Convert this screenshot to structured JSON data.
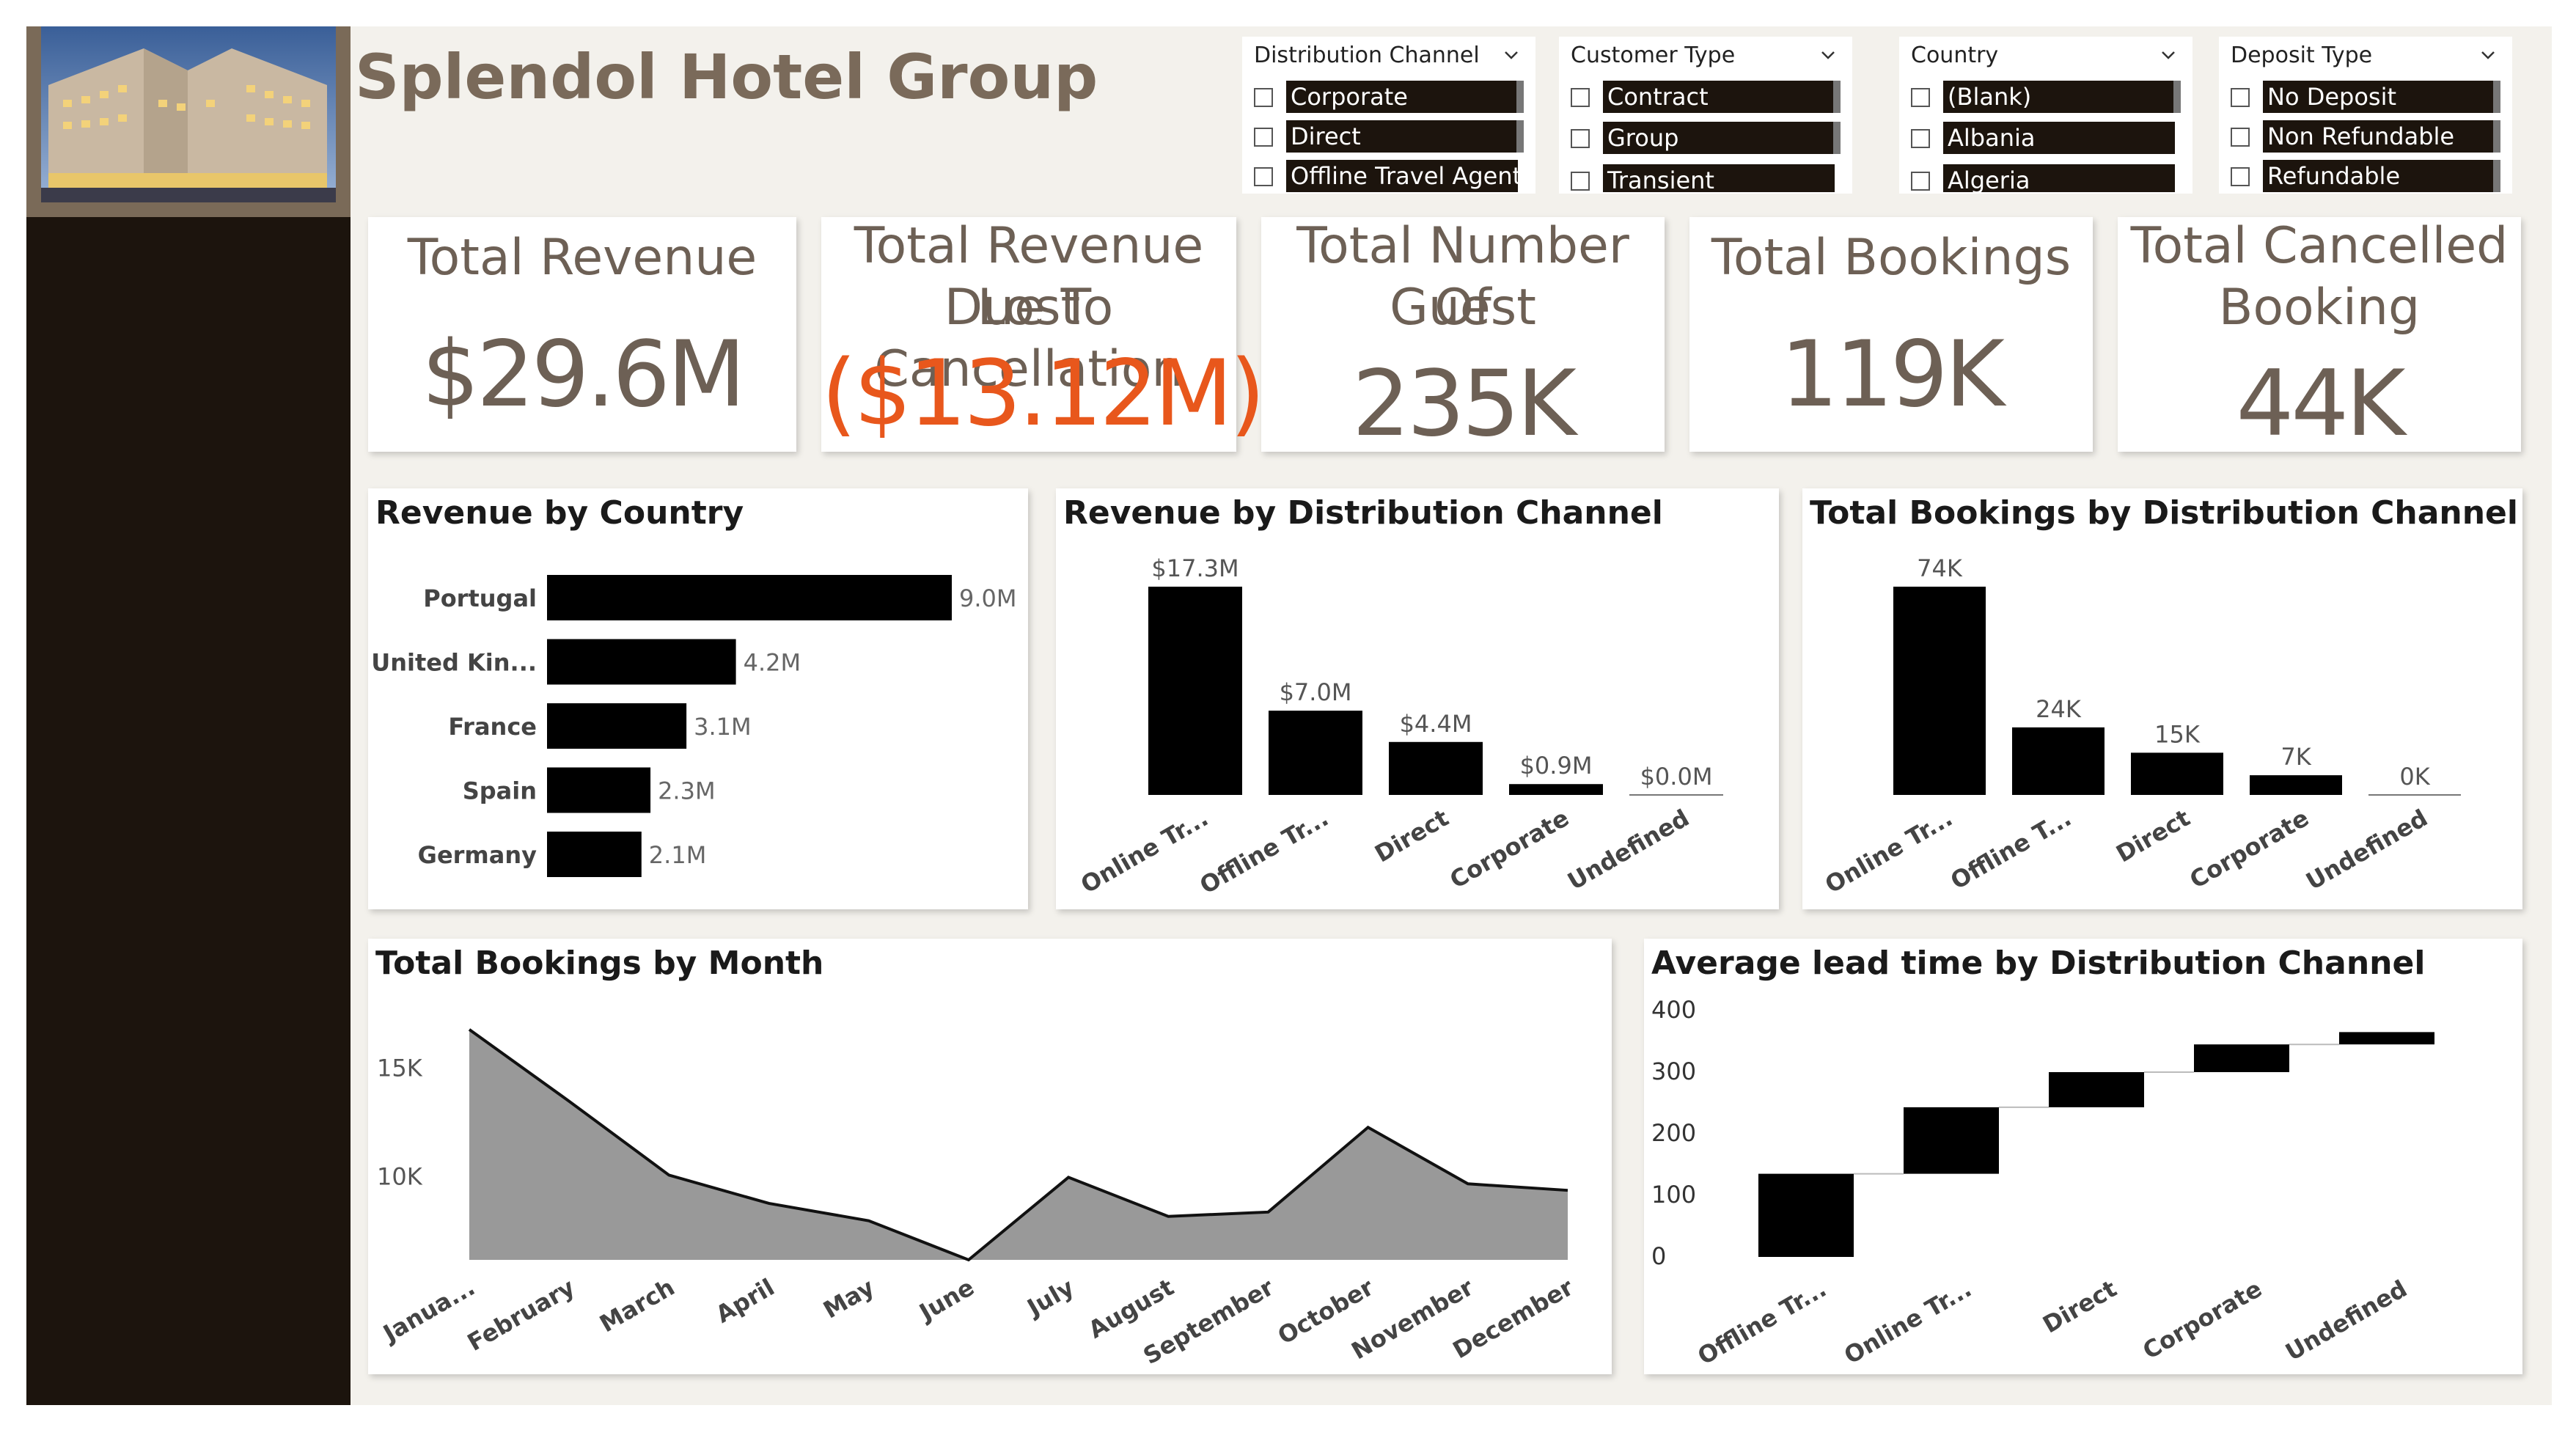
{
  "app": {
    "title": "Splendol Hotel Group"
  },
  "colors": {
    "sidebar": "#1c140d",
    "canvas": "#f3f1ec",
    "kpi_text": "#6d6055",
    "lost_revenue": "#e8571c",
    "bar": "#000000",
    "area_fill": "#999999"
  },
  "slicers": [
    {
      "title": "Distribution Channel",
      "items": [
        "Corporate",
        "Direct",
        "Offline Travel Agent"
      ]
    },
    {
      "title": "Customer Type",
      "items": [
        "Contract",
        "Group",
        "Transient"
      ]
    },
    {
      "title": "Country",
      "items": [
        "(Blank)",
        "Albania",
        "Algeria"
      ]
    },
    {
      "title": "Deposit Type",
      "items": [
        "No Deposit",
        "Non Refundable",
        "Refundable"
      ]
    }
  ],
  "kpis": [
    {
      "label_lines": [
        "Total Revenue"
      ],
      "value": "$29.6M"
    },
    {
      "label_lines": [
        "Total Revenue Lost",
        "Due To Cancellation"
      ],
      "value": "($13.12M)"
    },
    {
      "label_lines": [
        "Total Number Of",
        "Guest"
      ],
      "value": "235K"
    },
    {
      "label_lines": [
        "Total Bookings"
      ],
      "value": "119K"
    },
    {
      "label_lines": [
        "Total Cancelled",
        "Booking"
      ],
      "value": "44K"
    }
  ],
  "chart_data": [
    {
      "type": "bar",
      "orientation": "horizontal",
      "title": "Revenue by Country",
      "categories": [
        "Portugal",
        "United Kin...",
        "France",
        "Spain",
        "Germany"
      ],
      "values": [
        9.0,
        4.2,
        3.1,
        2.3,
        2.1
      ],
      "data_labels": [
        "9.0M",
        "4.2M",
        "3.1M",
        "2.3M",
        "2.1M"
      ]
    },
    {
      "type": "bar",
      "title": "Revenue by Distribution Channel",
      "categories": [
        "Online Tr...",
        "Offline Tr...",
        "Direct",
        "Corporate",
        "Undefined"
      ],
      "values": [
        17.3,
        7.0,
        4.4,
        0.9,
        0.0
      ],
      "data_labels": [
        "$17.3M",
        "$7.0M",
        "$4.4M",
        "$0.9M",
        "$0.0M"
      ]
    },
    {
      "type": "bar",
      "title": "Total Bookings by Distribution Channel",
      "categories": [
        "Online Tr...",
        "Offline T...",
        "Direct",
        "Corporate",
        "Undefined"
      ],
      "values": [
        74,
        24,
        15,
        7,
        0
      ],
      "data_labels": [
        "74K",
        "24K",
        "15K",
        "7K",
        "0K"
      ]
    },
    {
      "type": "area",
      "title": "Total Bookings by Month",
      "x": [
        "Janua...",
        "February",
        "March",
        "April",
        "May",
        "June",
        "July",
        "August",
        "September",
        "October",
        "November",
        "December"
      ],
      "values": [
        16.8,
        13.5,
        10.1,
        8.8,
        8.0,
        6.2,
        10.0,
        8.2,
        8.4,
        12.3,
        9.7,
        9.4
      ],
      "yticks": [
        "10K",
        "15K"
      ],
      "yticks_values": [
        10,
        15
      ],
      "ylim": [
        6.2,
        17
      ]
    },
    {
      "type": "bar",
      "subtype": "waterfall",
      "title": "Average lead time by Distribution Channel",
      "categories": [
        "Offline Tr...",
        "Online Tr...",
        "Direct",
        "Corporate",
        "Undefined"
      ],
      "values": [
        135,
        108,
        57,
        45,
        20
      ],
      "yticks": [
        0,
        100,
        200,
        300,
        400
      ],
      "ylim": [
        0,
        400
      ]
    }
  ]
}
